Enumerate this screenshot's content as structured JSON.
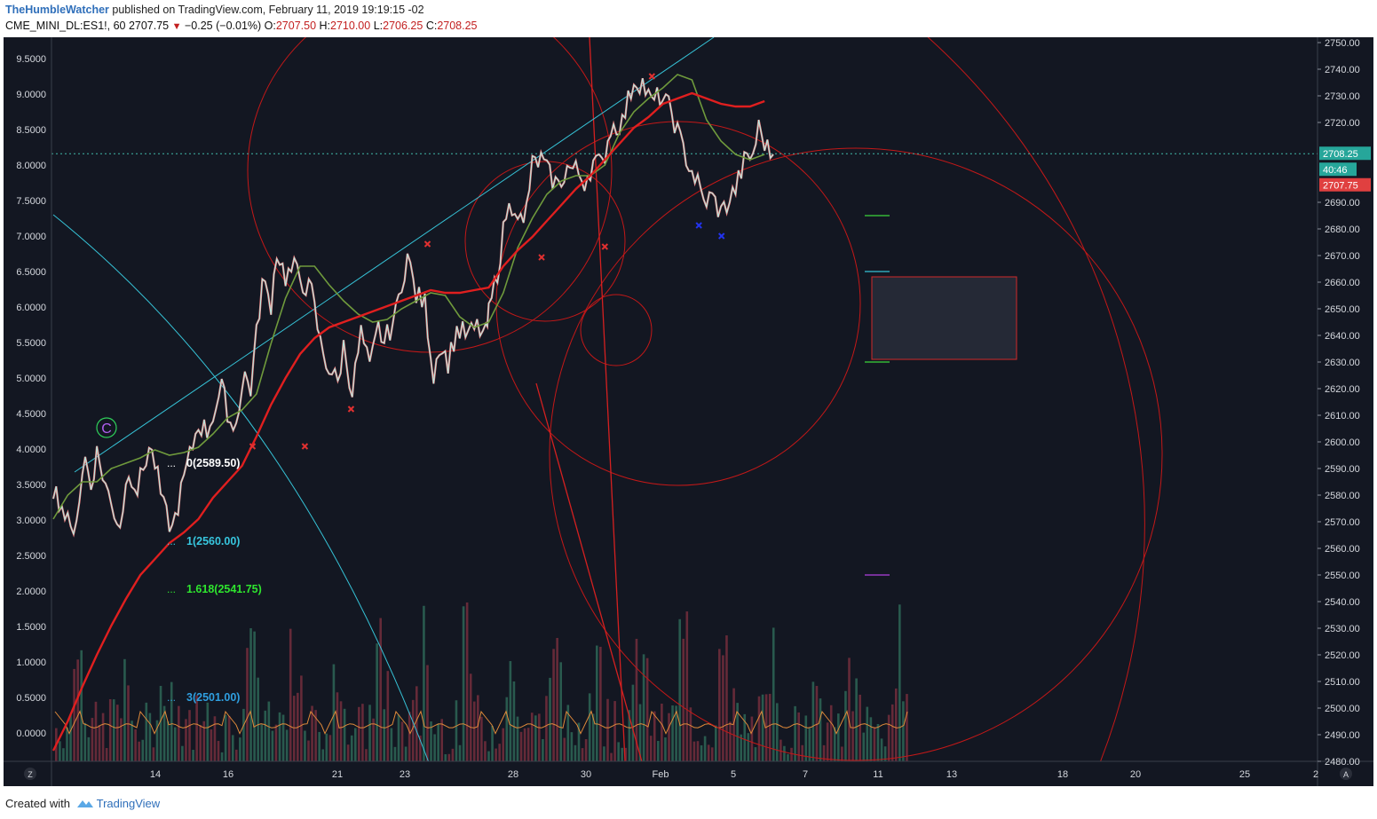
{
  "header": {
    "author": "TheHumbleWatcher",
    "published": "published on TradingView.com, February 11, 2019 19:19:15 -02",
    "symbol": "CME_MINI_DL:ES1!, 60",
    "last": "2707.75",
    "change": "−0.25 (−0.01%)",
    "open_label": "O:",
    "open": "2707.50",
    "high_label": "H:",
    "high": "2710.00",
    "low_label": "L:",
    "low": "2706.25",
    "close_label": "C:",
    "close": "2708.25"
  },
  "footer": {
    "created_with": "Created with",
    "brand": "TradingView"
  },
  "colors": {
    "background": "#131722",
    "bull": "#b3f0e6",
    "bear": "#f08080",
    "sma_fast": "#6f9a3c",
    "sma_slow": "#e01f1f",
    "circle": "#c31818",
    "cyan": "#36c2d6",
    "oscillator": "#e08a3a"
  },
  "chart_data": {
    "type": "line",
    "title": "",
    "x": [
      "14",
      "16",
      "21",
      "23",
      "28",
      "30",
      "Feb",
      "5",
      "7",
      "11",
      "13",
      "18",
      "20",
      "25",
      "2"
    ],
    "right_axis": {
      "ylim": [
        2480,
        2752
      ],
      "ticks": [
        "2750.00",
        "2740.00",
        "2730.00",
        "2720.00",
        "2690.00",
        "2680.00",
        "2670.00",
        "2660.00",
        "2650.00",
        "2640.00",
        "2630.00",
        "2620.00",
        "2610.00",
        "2600.00",
        "2590.00",
        "2580.00",
        "2570.00",
        "2560.00",
        "2550.00",
        "2540.00",
        "2530.00",
        "2520.00",
        "2510.00",
        "2500.00",
        "2490.00",
        "2480.00"
      ]
    },
    "left_axis": {
      "ylim": [
        -0.4,
        9.8
      ],
      "ticks": [
        "9.5000",
        "9.0000",
        "8.5000",
        "8.0000",
        "7.5000",
        "7.0000",
        "6.5000",
        "6.0000",
        "5.5000",
        "5.0000",
        "4.5000",
        "4.0000",
        "3.5000",
        "3.0000",
        "2.5000",
        "2.0000",
        "1.5000",
        "1.0000",
        "0.5000",
        "0.0000"
      ]
    },
    "series": [
      {
        "name": "",
        "role": "price",
        "points": [
          [
            0,
            2583
          ],
          [
            0.6,
            2576
          ],
          [
            1.2,
            2566
          ],
          [
            1.6,
            2572
          ],
          [
            2.2,
            2594
          ],
          [
            2.6,
            2584
          ],
          [
            3.0,
            2596
          ],
          [
            3.4,
            2588
          ],
          [
            4.0,
            2576
          ],
          [
            4.6,
            2569
          ],
          [
            5.2,
            2590
          ],
          [
            5.8,
            2582
          ],
          [
            6.6,
            2598
          ],
          [
            7.0,
            2592
          ],
          [
            7.6,
            2575
          ],
          [
            8.2,
            2567
          ],
          [
            9.0,
            2586
          ],
          [
            10.0,
            2607
          ],
          [
            10.6,
            2604
          ],
          [
            11.6,
            2620
          ],
          [
            12.4,
            2604
          ],
          [
            13.2,
            2625
          ],
          [
            13.6,
            2620
          ],
          [
            14.0,
            2640
          ],
          [
            14.4,
            2660
          ],
          [
            15.0,
            2652
          ],
          [
            15.4,
            2672
          ],
          [
            16.0,
            2662
          ],
          [
            16.6,
            2665
          ],
          [
            17.2,
            2660
          ],
          [
            17.8,
            2656
          ],
          [
            18.4,
            2637
          ],
          [
            18.8,
            2630
          ],
          [
            19.6,
            2622
          ],
          [
            20.0,
            2636
          ],
          [
            20.6,
            2619
          ],
          [
            21.2,
            2641
          ],
          [
            21.8,
            2627
          ],
          [
            22.4,
            2643
          ],
          [
            22.8,
            2637
          ],
          [
            23.6,
            2648
          ],
          [
            24.0,
            2660
          ],
          [
            24.4,
            2670
          ],
          [
            25.0,
            2655
          ],
          [
            25.6,
            2652
          ],
          [
            26.2,
            2625
          ],
          [
            26.6,
            2637
          ],
          [
            27.2,
            2630
          ],
          [
            27.8,
            2642
          ],
          [
            28.6,
            2640
          ],
          [
            29.2,
            2643
          ],
          [
            29.8,
            2640
          ],
          [
            30.0,
            2648
          ],
          [
            30.6,
            2664
          ],
          [
            31.2,
            2686
          ],
          [
            31.8,
            2690
          ],
          [
            32.4,
            2680
          ],
          [
            33.0,
            2704
          ],
          [
            33.6,
            2706
          ],
          [
            34.2,
            2700
          ],
          [
            34.8,
            2696
          ],
          [
            35.4,
            2703
          ],
          [
            36.0,
            2702
          ],
          [
            36.6,
            2698
          ],
          [
            37.2,
            2705
          ],
          [
            37.8,
            2704
          ],
          [
            38.4,
            2718
          ],
          [
            39.2,
            2720
          ],
          [
            40.0,
            2736
          ],
          [
            40.6,
            2735
          ],
          [
            41.2,
            2727
          ],
          [
            41.8,
            2730
          ],
          [
            42.6,
            2724
          ],
          [
            43.2,
            2713
          ],
          [
            43.8,
            2704
          ],
          [
            44.4,
            2697
          ],
          [
            44.8,
            2690
          ],
          [
            45.4,
            2692
          ],
          [
            46.0,
            2686
          ],
          [
            46.6,
            2691
          ],
          [
            47.0,
            2695
          ],
          [
            47.6,
            2705
          ],
          [
            48.2,
            2708
          ],
          [
            48.6,
            2718
          ],
          [
            49.2,
            2710
          ],
          [
            49.6,
            2708
          ]
        ]
      },
      {
        "name": "",
        "role": "sma_fast",
        "points": [
          [
            0,
            2571
          ],
          [
            1,
            2580
          ],
          [
            2,
            2585
          ],
          [
            3,
            2585
          ],
          [
            4,
            2590
          ],
          [
            5,
            2592
          ],
          [
            6,
            2594
          ],
          [
            7,
            2597
          ],
          [
            8,
            2595
          ],
          [
            9,
            2596
          ],
          [
            10,
            2598
          ],
          [
            11,
            2603
          ],
          [
            12,
            2609
          ],
          [
            13,
            2612
          ],
          [
            14,
            2618
          ],
          [
            15,
            2637
          ],
          [
            16,
            2654
          ],
          [
            17,
            2666
          ],
          [
            18,
            2666
          ],
          [
            19,
            2659
          ],
          [
            20,
            2653
          ],
          [
            21,
            2648
          ],
          [
            22,
            2645
          ],
          [
            23,
            2646
          ],
          [
            24,
            2650
          ],
          [
            25,
            2653
          ],
          [
            26,
            2656
          ],
          [
            27,
            2655
          ],
          [
            28,
            2647
          ],
          [
            29,
            2643
          ],
          [
            30,
            2645
          ],
          [
            31,
            2656
          ],
          [
            32,
            2673
          ],
          [
            33,
            2684
          ],
          [
            34,
            2693
          ],
          [
            35,
            2698
          ],
          [
            36,
            2700
          ],
          [
            37,
            2700
          ],
          [
            38,
            2704
          ],
          [
            39,
            2716
          ],
          [
            40,
            2724
          ],
          [
            41,
            2729
          ],
          [
            42,
            2733
          ],
          [
            43,
            2738
          ],
          [
            44,
            2736
          ],
          [
            45,
            2721
          ],
          [
            46,
            2713
          ],
          [
            47,
            2708
          ],
          [
            48,
            2706
          ],
          [
            49,
            2708
          ]
        ]
      },
      {
        "name": "",
        "role": "sma_slow",
        "points": [
          [
            0,
            2484
          ],
          [
            1,
            2495
          ],
          [
            2,
            2508
          ],
          [
            3,
            2520
          ],
          [
            4,
            2531
          ],
          [
            5,
            2541
          ],
          [
            6,
            2550
          ],
          [
            7,
            2556
          ],
          [
            8,
            2562
          ],
          [
            9,
            2566
          ],
          [
            10,
            2571
          ],
          [
            11,
            2579
          ],
          [
            12,
            2585
          ],
          [
            13,
            2591
          ],
          [
            14,
            2602
          ],
          [
            15,
            2614
          ],
          [
            16,
            2624
          ],
          [
            17,
            2633
          ],
          [
            18,
            2639
          ],
          [
            19,
            2643
          ],
          [
            20,
            2645
          ],
          [
            21,
            2647
          ],
          [
            22,
            2649
          ],
          [
            23,
            2651
          ],
          [
            24,
            2653
          ],
          [
            25,
            2655
          ],
          [
            26,
            2657
          ],
          [
            27,
            2656
          ],
          [
            28,
            2656
          ],
          [
            29,
            2657
          ],
          [
            30,
            2658
          ],
          [
            31,
            2666
          ],
          [
            32,
            2672
          ],
          [
            33,
            2677
          ],
          [
            34,
            2683
          ],
          [
            35,
            2689
          ],
          [
            36,
            2695
          ],
          [
            37,
            2700
          ],
          [
            38,
            2706
          ],
          [
            39,
            2712
          ],
          [
            40,
            2718
          ],
          [
            41,
            2722
          ],
          [
            42,
            2727
          ],
          [
            43,
            2729
          ],
          [
            44,
            2731
          ],
          [
            45,
            2729
          ],
          [
            46,
            2727
          ],
          [
            47,
            2726
          ],
          [
            48,
            2726
          ],
          [
            49,
            2728
          ]
        ]
      }
    ],
    "annotations": {
      "wave_label": "C",
      "projections": [
        {
          "label": "0(2589.50)",
          "color": "#ffffff"
        },
        {
          "label": "1(2560.00)",
          "color": "#37c6de"
        },
        {
          "label": "1.618(2541.75)",
          "color": "#2ee52e"
        },
        {
          "label": "3(2501.00)",
          "color": "#2f9fe0"
        }
      ],
      "price_tags": [
        {
          "label": "2708.25",
          "color": "#26a69a"
        },
        {
          "label": "40:46",
          "color": "#26a69a"
        },
        {
          "label": "2707.75",
          "color": "#e04040"
        }
      ]
    },
    "grid": false,
    "legend": "none"
  }
}
